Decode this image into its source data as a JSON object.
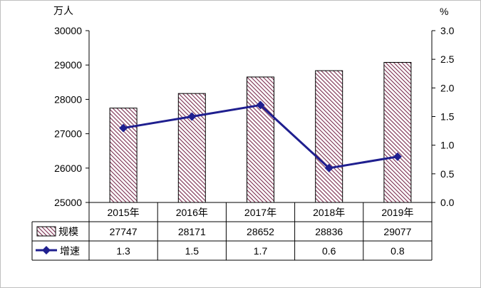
{
  "chart_data": {
    "type": "bar",
    "categories": [
      "2015年",
      "2016年",
      "2017年",
      "2018年",
      "2019年"
    ],
    "left_axis": {
      "unit": "万人",
      "ylim": [
        25000,
        30000
      ],
      "ticks": [
        "25000",
        "26000",
        "27000",
        "28000",
        "29000",
        "30000"
      ]
    },
    "right_axis": {
      "unit": "%",
      "ylim": [
        0,
        3.0
      ],
      "ticks": [
        "0.0",
        "0.5",
        "1.0",
        "1.5",
        "2.0",
        "2.5",
        "3.0"
      ]
    },
    "series": [
      {
        "name": "规模",
        "type": "bar",
        "axis": "left",
        "values": [
          27747,
          28171,
          28652,
          28836,
          29077
        ],
        "labels": [
          "27747",
          "28171",
          "28652",
          "28836",
          "29077"
        ],
        "color": "#7b2d4f"
      },
      {
        "name": "增速",
        "type": "line",
        "axis": "right",
        "values": [
          1.3,
          1.5,
          1.7,
          0.6,
          0.8
        ],
        "labels": [
          "1.3",
          "1.5",
          "1.7",
          "0.6",
          "0.8"
        ],
        "color": "#1f1f8f"
      }
    ],
    "grid": false,
    "legend": "data-table"
  }
}
